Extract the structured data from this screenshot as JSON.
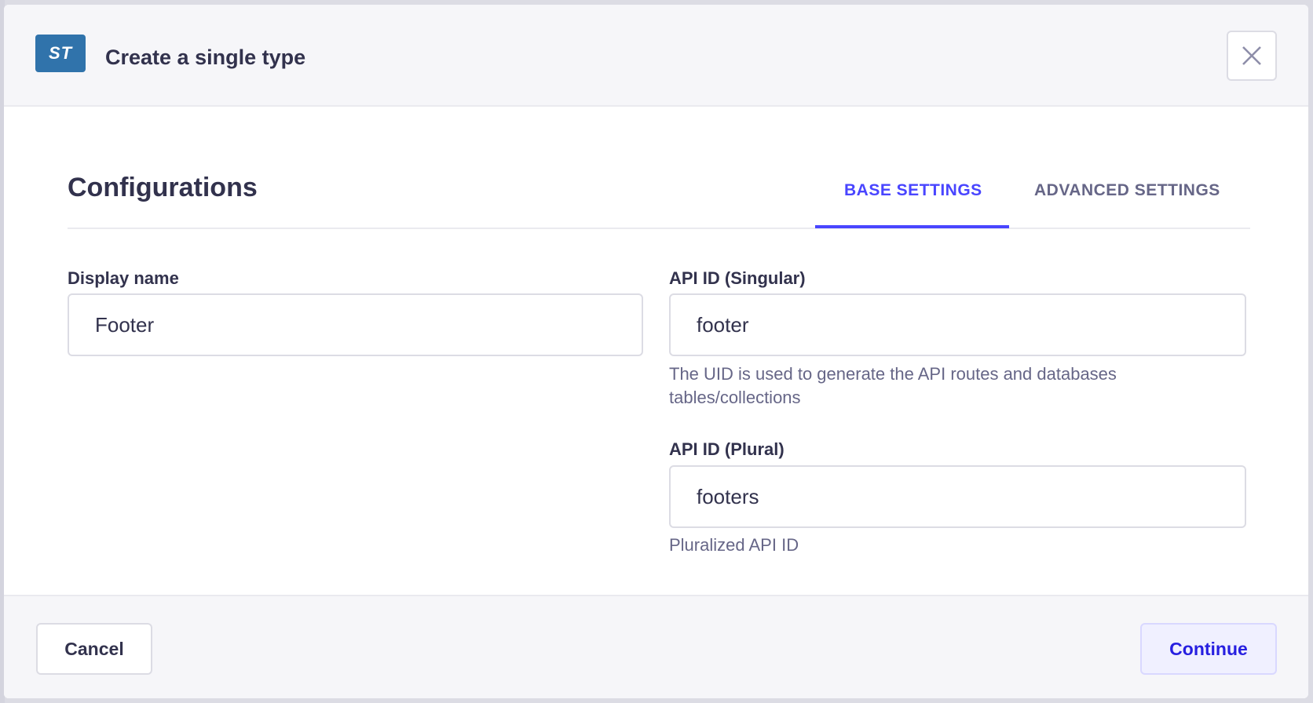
{
  "header": {
    "badge": "ST",
    "title": "Create a single type",
    "close_icon": "close-icon"
  },
  "section": {
    "title": "Configurations",
    "tabs": [
      {
        "label": "BASE SETTINGS",
        "active": true
      },
      {
        "label": "ADVANCED SETTINGS",
        "active": false
      }
    ]
  },
  "form": {
    "display_name": {
      "label": "Display name",
      "value": "Footer"
    },
    "api_id_singular": {
      "label": "API ID (Singular)",
      "value": "footer",
      "hint": "The UID is used to generate the API routes and databases tables/collections"
    },
    "api_id_plural": {
      "label": "API ID (Plural)",
      "value": "footers",
      "hint": "Pluralized API ID"
    }
  },
  "footer": {
    "cancel_label": "Cancel",
    "continue_label": "Continue"
  },
  "colors": {
    "accent": "#4945ff",
    "badge": "#3073ab",
    "text": "#32324d",
    "muted": "#666687"
  }
}
